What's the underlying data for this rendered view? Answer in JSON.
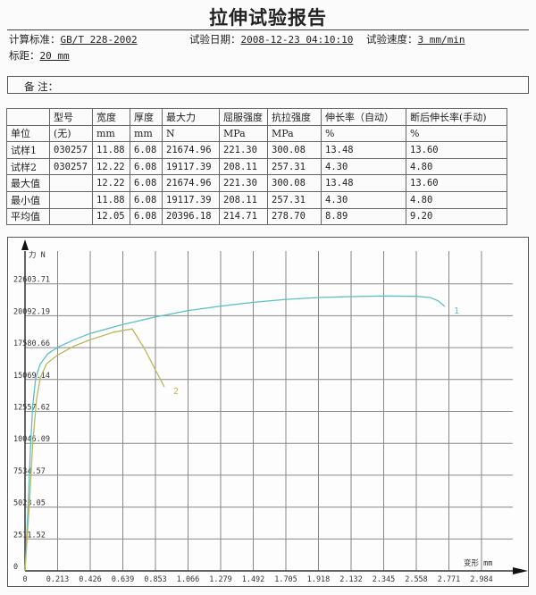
{
  "title": "拉伸试验报告",
  "meta": {
    "standard_label": "计算标准：",
    "standard": "GB/T 228-2002",
    "date_label": "试验日期：",
    "date": "2008-12-23 04:10:10",
    "speed_label": "试验速度：",
    "speed": "3 mm/min",
    "gauge_label": "标距：",
    "gauge": "20 mm"
  },
  "remarks_label": "备  注：",
  "table": {
    "headers": [
      "",
      "型号",
      "宽度",
      "厚度",
      "最大力",
      "屈服强度",
      "抗拉强度",
      "伸长率（自动）",
      "断后伸长率(手动)"
    ],
    "rows": [
      [
        "单位",
        "(无)",
        "mm",
        "mm",
        "N",
        "MPa",
        "MPa",
        "%",
        "%"
      ],
      [
        "试样1",
        "030257",
        "11.88",
        "6.08",
        "21674.96",
        "221.30",
        "300.08",
        "13.48",
        "13.60"
      ],
      [
        "试样2",
        "030257",
        "12.22",
        "6.08",
        "19117.39",
        "208.11",
        "257.31",
        "4.30",
        "4.80"
      ],
      [
        "最大值",
        "",
        "12.22",
        "6.08",
        "21674.96",
        "221.30",
        "300.08",
        "13.48",
        "13.60"
      ],
      [
        "最小值",
        "",
        "11.88",
        "6.08",
        "19117.39",
        "208.11",
        "257.31",
        "4.30",
        "4.80"
      ],
      [
        "平均值",
        "",
        "12.05",
        "6.08",
        "20396.18",
        "214.71",
        "278.70",
        "8.89",
        "9.20"
      ]
    ]
  },
  "chart_data": {
    "type": "line",
    "ylabel": "力 N",
    "xlabel": "变形 mm",
    "xlim": [
      0,
      3.2
    ],
    "ylim": [
      0,
      25000
    ],
    "grid": true,
    "x_ticks": [
      "0",
      "0.213",
      "0.426",
      "0.639",
      "0.853",
      "1.066",
      "1.279",
      "1.492",
      "1.705",
      "1.918",
      "2.132",
      "2.345",
      "2.558",
      "2.771",
      "2.984"
    ],
    "y_ticks": [
      "0",
      "2511.52",
      "5023.05",
      "7534.57",
      "10046.09",
      "12557.62",
      "15069.14",
      "17580.66",
      "20092.19",
      "22603.71"
    ],
    "series": [
      {
        "name": "1",
        "color": "#5fbfbf",
        "points": [
          [
            0,
            0
          ],
          [
            0.02,
            5000
          ],
          [
            0.035,
            9500
          ],
          [
            0.05,
            13000
          ],
          [
            0.07,
            15200
          ],
          [
            0.1,
            16300
          ],
          [
            0.15,
            17100
          ],
          [
            0.213,
            17600
          ],
          [
            0.32,
            18200
          ],
          [
            0.426,
            18700
          ],
          [
            0.639,
            19400
          ],
          [
            0.853,
            20000
          ],
          [
            1.066,
            20500
          ],
          [
            1.279,
            20850
          ],
          [
            1.492,
            21150
          ],
          [
            1.705,
            21380
          ],
          [
            1.918,
            21530
          ],
          [
            2.132,
            21600
          ],
          [
            2.345,
            21650
          ],
          [
            2.558,
            21620
          ],
          [
            2.65,
            21520
          ],
          [
            2.7,
            21250
          ],
          [
            2.743,
            20820
          ]
        ]
      },
      {
        "name": "2",
        "color": "#b8b860",
        "points": [
          [
            0,
            0
          ],
          [
            0.03,
            5500
          ],
          [
            0.05,
            10000
          ],
          [
            0.075,
            13500
          ],
          [
            0.1,
            15200
          ],
          [
            0.14,
            16300
          ],
          [
            0.213,
            17000
          ],
          [
            0.32,
            17700
          ],
          [
            0.426,
            18200
          ],
          [
            0.58,
            18800
          ],
          [
            0.7,
            19060
          ],
          [
            0.78,
            17500
          ],
          [
            0.853,
            15800
          ],
          [
            0.91,
            14490
          ]
        ]
      }
    ]
  }
}
